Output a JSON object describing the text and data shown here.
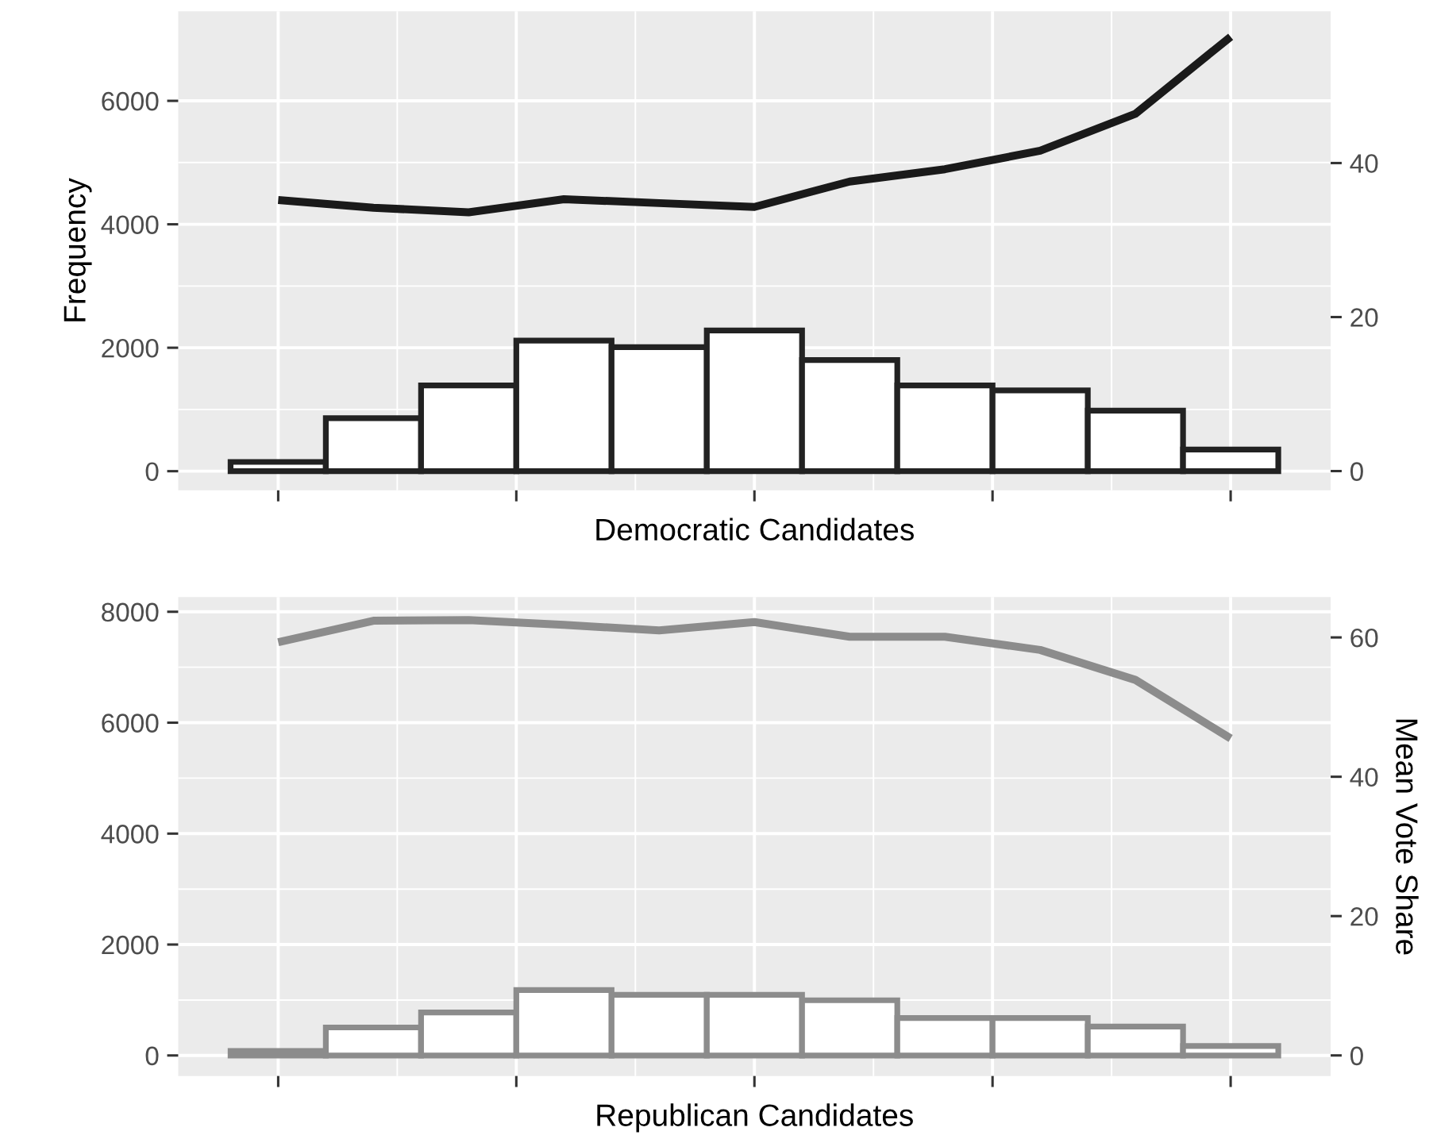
{
  "chart_data": [
    {
      "type": "bar",
      "xlabel": "Democratic Candidates",
      "ylabel": "Frequency",
      "color": "#222222",
      "categories": [
        null,
        null,
        null,
        null,
        null,
        null,
        null,
        null,
        null,
        null,
        null
      ],
      "values": [
        150,
        860,
        1390,
        2115,
        2010,
        2280,
        1800,
        1390,
        1310,
        980,
        350
      ],
      "series": [
        {
          "type": "line",
          "axis": "y2",
          "color": "#1a1a1a",
          "values": [
            35.2,
            34.2,
            33.6,
            35.3,
            34.8,
            34.3,
            37.6,
            39.2,
            41.6,
            46.4,
            56.4
          ]
        }
      ],
      "ylim": [
        -310,
        7450
      ],
      "yticks": [
        0,
        2000,
        4000,
        6000
      ],
      "y2lim": [
        -2.5,
        59.7
      ],
      "y2ticks": [
        0,
        20,
        40
      ],
      "grid": true
    },
    {
      "type": "bar",
      "xlabel": "Republican Candidates",
      "y2label": "Mean Vote Share",
      "color": "#8c8c8c",
      "categories": [
        null,
        null,
        null,
        null,
        null,
        null,
        null,
        null,
        null,
        null,
        null
      ],
      "values": [
        80,
        505,
        775,
        1180,
        1095,
        1095,
        995,
        675,
        675,
        520,
        170
      ],
      "series": [
        {
          "type": "line",
          "axis": "y2",
          "color": "#8c8c8c",
          "values": [
            59.3,
            62.4,
            62.5,
            61.8,
            61.0,
            62.2,
            60.1,
            60.1,
            58.2,
            53.9,
            45.5
          ]
        }
      ],
      "ylim": [
        -370,
        8266
      ],
      "yticks": [
        0,
        2000,
        4000,
        6000,
        8000
      ],
      "y2lim": [
        -2.95,
        65.8
      ],
      "y2ticks": [
        0,
        20,
        40,
        60
      ],
      "grid": true
    }
  ]
}
